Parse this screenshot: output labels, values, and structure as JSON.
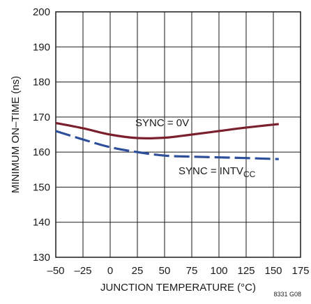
{
  "chart_data": {
    "type": "line",
    "xlabel": "JUNCTION TEMPERATURE (°C)",
    "ylabel": "MINIMUM ON–TIME (ns)",
    "xlim": [
      -50,
      175
    ],
    "ylim": [
      130,
      200
    ],
    "xticks": [
      -50,
      -25,
      0,
      25,
      50,
      75,
      100,
      125,
      150,
      175
    ],
    "xtick_labels": [
      "–50",
      "–25",
      "0",
      "25",
      "50",
      "75",
      "100",
      "125",
      "150",
      "175"
    ],
    "yticks": [
      130,
      140,
      150,
      160,
      170,
      180,
      190,
      200
    ],
    "ytick_labels": [
      "130",
      "140",
      "150",
      "160",
      "170",
      "180",
      "190",
      "200"
    ],
    "grid": true,
    "series": [
      {
        "color": "#7a1f2b",
        "style": "solid",
        "x": [
          -50,
          -25,
          0,
          25,
          50,
          75,
          100,
          125,
          155
        ],
        "y": [
          168.3,
          166.8,
          165,
          164,
          164.1,
          165,
          166,
          167,
          168
        ]
      },
      {
        "color": "#2e4f9c",
        "style": "dashed",
        "x": [
          -50,
          -25,
          0,
          25,
          50,
          75,
          100,
          125,
          155
        ],
        "y": [
          166,
          163.6,
          161.4,
          160,
          159,
          158.7,
          158.5,
          158.3,
          158
        ]
      }
    ],
    "annotations": [
      {
        "text": "SYNC = 0V"
      },
      {
        "text": "SYNC = INTV",
        "subscript": "CC"
      }
    ],
    "figure_id": "8331 G08"
  }
}
